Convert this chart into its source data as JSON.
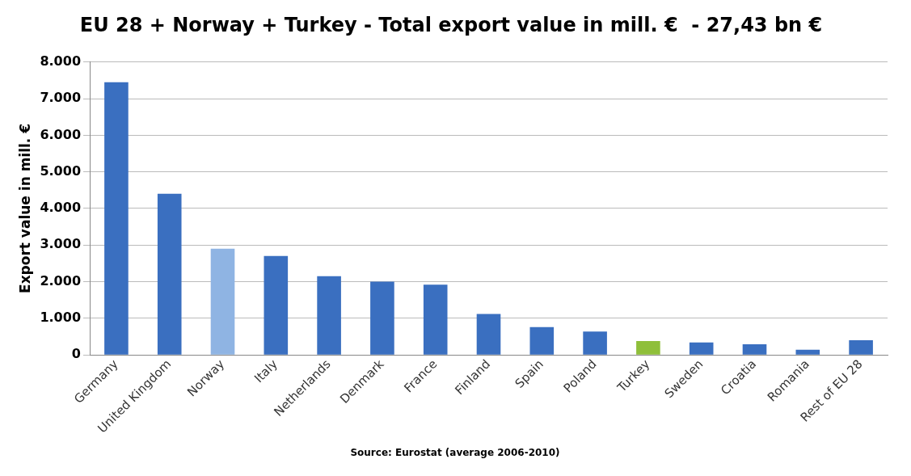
{
  "chart_data": {
    "type": "bar",
    "title": "EU 28 + Norway + Turkey - Total export value in mill. €  - 27,43 bn €",
    "ylabel": "Export value in mill. €",
    "categories": [
      "Germany",
      "United Kingdom",
      "Norway",
      "Italy",
      "Netherlands",
      "Denmark",
      "France",
      "Finland",
      "Spain",
      "Poland",
      "Turkey",
      "Sweden",
      "Croatia",
      "Romania",
      "Rest of EU 28"
    ],
    "values": [
      7450,
      4400,
      2900,
      2700,
      2150,
      2000,
      1920,
      1120,
      760,
      640,
      380,
      340,
      290,
      140,
      400
    ],
    "colors": [
      "#3a6fc0",
      "#3a6fc0",
      "#8fb4e3",
      "#3a6fc0",
      "#3a6fc0",
      "#3a6fc0",
      "#3a6fc0",
      "#3a6fc0",
      "#3a6fc0",
      "#3a6fc0",
      "#8fbf3a",
      "#3a6fc0",
      "#3a6fc0",
      "#3a6fc0",
      "#3a6fc0"
    ],
    "ylim": [
      0,
      8000
    ],
    "yticks": [
      {
        "value": 0,
        "label": "0"
      },
      {
        "value": 1000,
        "label": "1.000"
      },
      {
        "value": 2000,
        "label": "2.000"
      },
      {
        "value": 3000,
        "label": "3.000"
      },
      {
        "value": 4000,
        "label": "4.000"
      },
      {
        "value": 5000,
        "label": "5.000"
      },
      {
        "value": 6000,
        "label": "6.000"
      },
      {
        "value": 7000,
        "label": "7.000"
      },
      {
        "value": 8000,
        "label": "8.000"
      }
    ],
    "grid": "y",
    "legend": false,
    "annotations": [
      "Source:  Eurostat (average 2006-2010)"
    ]
  }
}
